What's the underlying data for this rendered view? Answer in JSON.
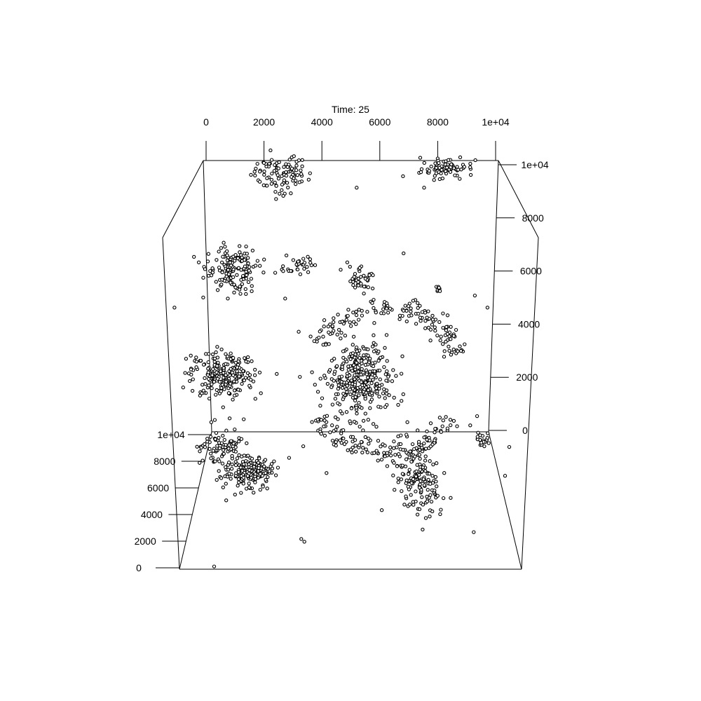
{
  "chart_data": {
    "type": "scatter",
    "title": "Time: 25",
    "axes": {
      "top": {
        "ticks": [
          "0",
          "2000",
          "4000",
          "6000",
          "8000",
          "1e+04"
        ],
        "range": [
          0,
          10000
        ]
      },
      "right": {
        "ticks": [
          "0",
          "2000",
          "4000",
          "6000",
          "8000",
          "1e+04"
        ],
        "range": [
          0,
          10000
        ]
      },
      "left_front": {
        "ticks": [
          "0",
          "2000",
          "4000",
          "6000",
          "8000",
          "1e+04"
        ],
        "range": [
          0,
          10000
        ]
      }
    },
    "projection": "3d-box-perspective",
    "grid": false,
    "legend": "none",
    "marker": {
      "shape": "circle",
      "fill": "#ffffff",
      "edge": "#000000"
    },
    "clusters": [
      {
        "x": 2600,
        "y": 9500,
        "z": 10000,
        "sx": 500,
        "sy": 350,
        "sz": 0,
        "n": 100
      },
      {
        "x": 8300,
        "y": 9700,
        "z": 10000,
        "sx": 450,
        "sy": 180,
        "sz": 0,
        "n": 80
      },
      {
        "x": 1400,
        "y": 7700,
        "z": 5000,
        "sx": 400,
        "sy": 380,
        "sz": 0,
        "n": 150
      },
      {
        "x": 1000,
        "y": 4200,
        "z": 5000,
        "sx": 500,
        "sy": 380,
        "sz": 0,
        "n": 230
      },
      {
        "x": 5300,
        "y": 4000,
        "z": 5000,
        "sx": 500,
        "sy": 650,
        "sz": 0,
        "n": 340
      },
      {
        "x": 3400,
        "y": 7800,
        "z": 5000,
        "sx": 200,
        "sy": 150,
        "sz": 0,
        "n": 30
      },
      {
        "x": 5300,
        "y": 7400,
        "z": 5000,
        "sx": 200,
        "sy": 200,
        "sz": 0,
        "n": 40
      },
      {
        "x": 7700,
        "y": 7000,
        "z": 5000,
        "sx": 60,
        "sy": 60,
        "sz": 0,
        "n": 8
      },
      {
        "x": 1600,
        "y": 0,
        "z": 7000,
        "sx": 450,
        "sy": 0,
        "sz": 600,
        "n": 180
      },
      {
        "x": 500,
        "y": 0,
        "z": 9000,
        "sx": 350,
        "sy": 0,
        "sz": 700,
        "n": 80
      },
      {
        "x": 7300,
        "y": 0,
        "z": 6500,
        "sx": 350,
        "sy": 0,
        "sz": 1200,
        "n": 150
      },
      {
        "x": 9700,
        "y": 0,
        "z": 9400,
        "sx": 150,
        "sy": 0,
        "sz": 300,
        "n": 20
      }
    ],
    "arcs": [
      {
        "cx": 6100,
        "cy": 4000,
        "z": 5000,
        "r": 2400,
        "from": 20,
        "to": 150,
        "sr": 200,
        "n": 150
      },
      {
        "cx": 6100,
        "cy": 4000,
        "z": 5000,
        "r": 2400,
        "from": 210,
        "to": 330,
        "sr": 200,
        "n": 140
      }
    ],
    "scatter": [
      [
        3000,
        9700,
        10000
      ],
      [
        5200,
        9000,
        10000
      ],
      [
        7500,
        9000,
        10000
      ],
      [
        400,
        7900,
        5000
      ],
      [
        -400,
        6400,
        5000
      ],
      [
        3400,
        5600,
        5000
      ],
      [
        3000,
        6700,
        5000
      ],
      [
        4900,
        7900,
        5000
      ],
      [
        6600,
        8200,
        5000
      ],
      [
        8800,
        6800,
        5000
      ],
      [
        9200,
        6400,
        5000
      ],
      [
        2700,
        4200,
        5000
      ],
      [
        600,
        2600,
        5000
      ],
      [
        1700,
        1900,
        5000
      ],
      [
        3500,
        1800,
        5000
      ],
      [
        9000,
        2800,
        5000
      ],
      [
        6800,
        2600,
        5000
      ],
      [
        4200,
        0,
        7000
      ],
      [
        3600,
        0,
        2000
      ],
      [
        3500,
        0,
        2200
      ],
      [
        6600,
        0,
        7500
      ],
      [
        6000,
        0,
        4300
      ],
      [
        8800,
        0,
        2700
      ],
      [
        10200,
        0,
        6800
      ],
      [
        10600,
        0,
        8900
      ],
      [
        4500,
        0,
        9000
      ],
      [
        4800,
        0,
        9100
      ],
      [
        -100,
        0,
        9500
      ],
      [
        1000,
        0,
        200
      ]
    ]
  }
}
